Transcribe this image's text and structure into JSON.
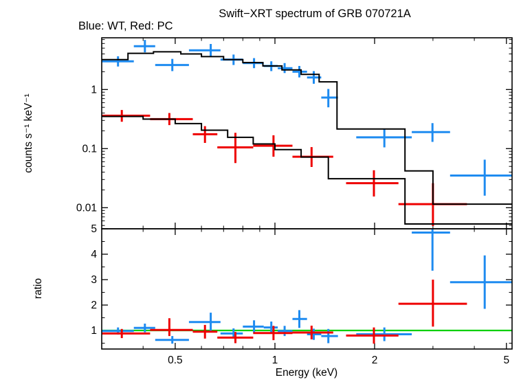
{
  "header": {
    "title": "Swift−XRT spectrum of GRB 070721A",
    "subtitle": "Blue: WT, Red: PC"
  },
  "chart_data": {
    "type": "scatter",
    "title": "Swift−XRT spectrum of GRB 070721A",
    "subtitle": "Blue: WT, Red: PC",
    "xlabel": "Energy (keV)",
    "xscale": "log",
    "xlim": [
      0.3,
      5.2
    ],
    "x_major_ticks": [
      0.5,
      1,
      2,
      5
    ],
    "x_major_tick_labels": [
      "0.5",
      "1",
      "2",
      "5"
    ],
    "x_minor_ticks": [
      0.3,
      0.4,
      0.6,
      0.7,
      0.8,
      0.9,
      3,
      4
    ],
    "colors": {
      "wt_blue": "#1e8bf0",
      "pc_red": "#ee0000",
      "model_black": "#000000",
      "reference_green": "#00d000"
    },
    "panels": [
      {
        "name": "spectrum",
        "ylabel": "counts s⁻¹ keV⁻¹",
        "yscale": "log",
        "ylim": [
          0.0044,
          7.5
        ],
        "y_major_ticks": [
          0.01,
          0.1,
          1
        ],
        "y_major_tick_labels": [
          "0.01",
          "0.1",
          "1"
        ],
        "series": [
          {
            "name": "WT data",
            "color": "wt_blue",
            "kind": "errorbar",
            "points": [
              [
                0.336,
                0.3,
                0.375,
                3.0,
                2.45,
                3.65
              ],
              [
                0.405,
                0.375,
                0.435,
                5.4,
                4.25,
                6.9
              ],
              [
                0.49,
                0.435,
                0.55,
                2.6,
                2.05,
                3.3
              ],
              [
                0.64,
                0.55,
                0.685,
                4.6,
                3.6,
                5.9
              ],
              [
                0.75,
                0.685,
                0.8,
                3.2,
                2.6,
                3.9
              ],
              [
                0.865,
                0.8,
                0.925,
                2.8,
                2.3,
                3.4
              ],
              [
                0.975,
                0.925,
                1.02,
                2.5,
                2.05,
                3.0
              ],
              [
                1.07,
                1.02,
                1.13,
                2.3,
                1.9,
                2.8
              ],
              [
                1.185,
                1.13,
                1.25,
                2.0,
                1.6,
                2.5
              ],
              [
                1.31,
                1.25,
                1.38,
                1.6,
                1.25,
                2.05
              ],
              [
                1.45,
                1.38,
                1.55,
                0.73,
                0.5,
                1.02
              ],
              [
                2.14,
                1.76,
                2.59,
                0.155,
                0.105,
                0.215
              ],
              [
                2.99,
                2.59,
                3.38,
                0.19,
                0.13,
                0.27
              ],
              [
                4.3,
                3.38,
                5.2,
                0.035,
                0.016,
                0.065
              ]
            ]
          },
          {
            "name": "PC data",
            "color": "pc_red",
            "kind": "errorbar",
            "points": [
              [
                0.345,
                0.3,
                0.42,
                0.36,
                0.285,
                0.45
              ],
              [
                0.48,
                0.42,
                0.565,
                0.315,
                0.25,
                0.4
              ],
              [
                0.615,
                0.565,
                0.67,
                0.175,
                0.125,
                0.24
              ],
              [
                0.76,
                0.67,
                0.86,
                0.105,
                0.057,
                0.185
              ],
              [
                0.99,
                0.86,
                1.13,
                0.112,
                0.073,
                0.168
              ],
              [
                1.29,
                1.13,
                1.5,
                0.073,
                0.049,
                0.106
              ],
              [
                1.99,
                1.64,
                2.36,
                0.026,
                0.0155,
                0.043
              ],
              [
                3.0,
                2.36,
                3.8,
                0.0115,
                0.0049,
                0.026
              ]
            ]
          },
          {
            "name": "WT model",
            "color": "model_black",
            "kind": "steps",
            "steps": [
              [
                0.3,
                0.36,
                3.2
              ],
              [
                0.36,
                0.43,
                4.1
              ],
              [
                0.43,
                0.52,
                4.35
              ],
              [
                0.52,
                0.6,
                4.0
              ],
              [
                0.6,
                0.7,
                3.6
              ],
              [
                0.7,
                0.8,
                3.2
              ],
              [
                0.8,
                0.92,
                2.85
              ],
              [
                0.92,
                1.05,
                2.5
              ],
              [
                1.05,
                1.2,
                2.15
              ],
              [
                1.2,
                1.36,
                1.8
              ],
              [
                1.36,
                1.54,
                1.35
              ],
              [
                1.54,
                2.47,
                0.215
              ],
              [
                2.47,
                3.0,
                0.042
              ],
              [
                3.0,
                5.2,
                0.0115
              ]
            ]
          },
          {
            "name": "PC model",
            "color": "model_black",
            "kind": "steps",
            "steps": [
              [
                0.3,
                0.4,
                0.35
              ],
              [
                0.4,
                0.5,
                0.315
              ],
              [
                0.5,
                0.6,
                0.265
              ],
              [
                0.6,
                0.72,
                0.205
              ],
              [
                0.72,
                0.86,
                0.155
              ],
              [
                0.86,
                1.0,
                0.12
              ],
              [
                1.0,
                1.2,
                0.096
              ],
              [
                1.2,
                1.45,
                0.072
              ],
              [
                1.45,
                2.47,
                0.031
              ],
              [
                2.47,
                5.2,
                0.0053
              ]
            ]
          }
        ]
      },
      {
        "name": "ratio",
        "ylabel": "ratio",
        "yscale": "linear",
        "ylim": [
          0.27,
          5
        ],
        "y_major_ticks": [
          1,
          2,
          3,
          4,
          5
        ],
        "y_major_tick_labels": [
          "1",
          "2",
          "3",
          "4",
          "5"
        ],
        "y_minor_ticks": [
          0.5,
          1.5,
          2.5,
          3.5,
          4.5
        ],
        "reference_line": {
          "y": 1,
          "color": "reference_green"
        },
        "series": [
          {
            "name": "WT ratio",
            "color": "wt_blue",
            "kind": "errorbar",
            "points": [
              [
                0.336,
                0.3,
                0.375,
                0.98,
                0.84,
                1.12
              ],
              [
                0.405,
                0.375,
                0.435,
                1.1,
                0.93,
                1.27
              ],
              [
                0.49,
                0.435,
                0.55,
                0.63,
                0.48,
                0.78
              ],
              [
                0.64,
                0.55,
                0.685,
                1.33,
                0.97,
                1.7
              ],
              [
                0.75,
                0.685,
                0.8,
                0.88,
                0.68,
                1.08
              ],
              [
                0.865,
                0.8,
                0.925,
                1.15,
                0.9,
                1.4
              ],
              [
                0.975,
                0.925,
                1.02,
                1.12,
                0.9,
                1.35
              ],
              [
                1.07,
                1.02,
                1.13,
                0.98,
                0.78,
                1.18
              ],
              [
                1.185,
                1.13,
                1.25,
                1.45,
                1.1,
                1.8
              ],
              [
                1.31,
                1.25,
                1.38,
                0.85,
                0.63,
                1.07
              ],
              [
                1.45,
                1.38,
                1.55,
                0.78,
                0.5,
                1.06
              ],
              [
                2.14,
                1.76,
                2.59,
                0.85,
                0.58,
                1.12
              ],
              [
                2.99,
                2.59,
                3.38,
                4.85,
                3.35,
                6.3
              ],
              [
                4.3,
                3.38,
                5.2,
                2.9,
                1.85,
                3.95
              ]
            ]
          },
          {
            "name": "PC ratio",
            "color": "pc_red",
            "kind": "errorbar",
            "points": [
              [
                0.345,
                0.3,
                0.42,
                0.88,
                0.7,
                1.06
              ],
              [
                0.48,
                0.42,
                0.565,
                1.02,
                0.78,
                1.48
              ],
              [
                0.615,
                0.565,
                0.67,
                0.95,
                0.68,
                1.22
              ],
              [
                0.76,
                0.67,
                0.86,
                0.72,
                0.5,
                0.94
              ],
              [
                0.99,
                0.86,
                1.13,
                0.9,
                0.62,
                1.18
              ],
              [
                1.29,
                1.13,
                1.5,
                0.92,
                0.65,
                1.19
              ],
              [
                1.99,
                1.64,
                2.36,
                0.8,
                0.48,
                1.12
              ],
              [
                3.0,
                2.36,
                3.8,
                2.05,
                1.15,
                3.0
              ]
            ]
          }
        ]
      }
    ]
  }
}
